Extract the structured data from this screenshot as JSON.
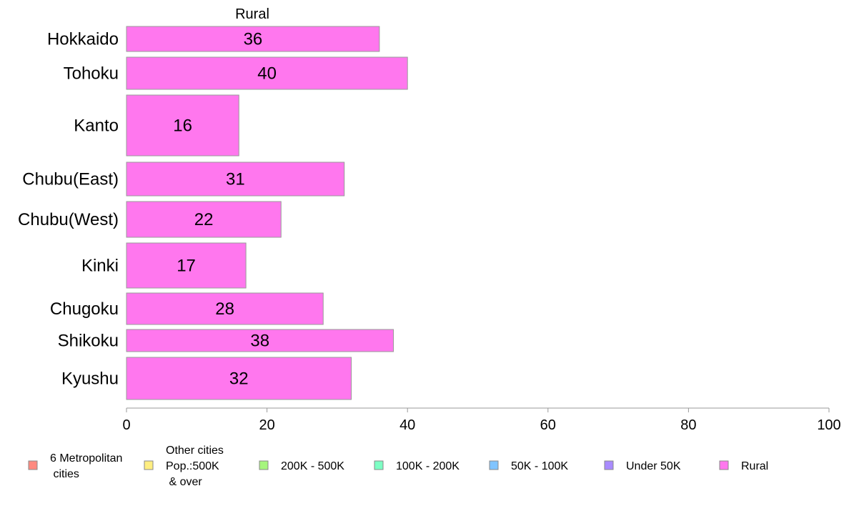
{
  "chart_data": {
    "type": "bar",
    "orientation": "horizontal",
    "panel_title": "Rural",
    "categories": [
      "Hokkaido",
      "Tohoku",
      "Kanto",
      "Chubu(East)",
      "Chubu(West)",
      "Kinki",
      "Chugoku",
      "Shikoku",
      "Kyushu"
    ],
    "values": [
      36,
      40,
      16,
      31,
      22,
      17,
      28,
      38,
      32
    ],
    "bar_color": "#ff77ee",
    "xlim": [
      0,
      100
    ],
    "x_ticks": [
      0,
      20,
      40,
      60,
      80,
      100
    ],
    "grid": false,
    "legend_position": "bottom",
    "legend": [
      {
        "lines": [
          "6 Metropolitan",
          " cities"
        ],
        "color": "#ff8a80"
      },
      {
        "lines": [
          "Other cities",
          "Pop.:500K",
          " & over"
        ],
        "color": "#ffee80"
      },
      {
        "lines": [
          "200K - 500K"
        ],
        "color": "#a6f57d"
      },
      {
        "lines": [
          "100K - 200K"
        ],
        "color": "#7dffc4"
      },
      {
        "lines": [
          "50K - 100K"
        ],
        "color": "#80c4ff"
      },
      {
        "lines": [
          "Under 50K"
        ],
        "color": "#a98bff"
      },
      {
        "lines": [
          "Rural"
        ],
        "color": "#ff77ee"
      }
    ]
  }
}
